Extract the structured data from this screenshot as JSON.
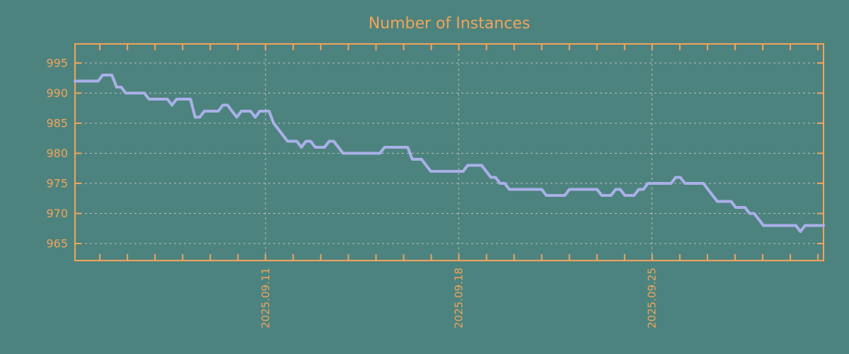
{
  "chart_data": {
    "type": "line",
    "title": "Number of Instances",
    "xlabel": "",
    "ylabel": "",
    "legend": "none",
    "grid": "dashed",
    "y_tick_labels": [
      "965",
      "970",
      "975",
      "980",
      "985",
      "990",
      "995"
    ],
    "y_ticks": [
      965,
      970,
      975,
      980,
      985,
      990,
      995
    ],
    "ylim": [
      962,
      998.5
    ],
    "x_tick_labels": [
      "2025.09.11",
      "2025.09.18",
      "2025.09.25"
    ],
    "x_minor_tick_interval": "1 day",
    "x_range": [
      "2025.09.04",
      "2025.10.01"
    ],
    "series": [
      {
        "name": "instances",
        "x_start": "2025.09.04",
        "interval_hours": 4,
        "values": [
          992,
          992,
          992,
          992,
          992,
          992,
          993,
          993,
          993,
          991,
          991,
          990,
          990,
          990,
          990,
          990,
          989,
          989,
          989,
          989,
          989,
          988,
          989,
          989,
          989,
          989,
          986,
          986,
          987,
          987,
          987,
          987,
          988,
          988,
          987,
          986,
          987,
          987,
          987,
          986,
          987,
          987,
          987,
          985,
          984,
          983,
          982,
          982,
          982,
          981,
          982,
          982,
          981,
          981,
          981,
          982,
          982,
          981,
          980,
          980,
          980,
          980,
          980,
          980,
          980,
          980,
          980,
          981,
          981,
          981,
          981,
          981,
          981,
          979,
          979,
          979,
          978,
          977,
          977,
          977,
          977,
          977,
          977,
          977,
          977,
          978,
          978,
          978,
          978,
          977,
          976,
          976,
          975,
          975,
          974,
          974,
          974,
          974,
          974,
          974,
          974,
          974,
          973,
          973,
          973,
          973,
          973,
          974,
          974,
          974,
          974,
          974,
          974,
          974,
          973,
          973,
          973,
          974,
          974,
          973,
          973,
          973,
          974,
          974,
          975,
          975,
          975,
          975,
          975,
          975,
          976,
          976,
          975,
          975,
          975,
          975,
          975,
          974,
          973,
          972,
          972,
          972,
          972,
          971,
          971,
          971,
          970,
          970,
          969,
          968,
          968,
          968,
          968,
          968,
          968,
          968,
          968,
          967,
          968,
          968,
          968,
          968,
          968
        ]
      }
    ],
    "colors": {
      "background": "#4d837e",
      "axis_and_text": "#f0a45c",
      "line": "#a9b0e8",
      "gridline": "#b7bdbb"
    }
  }
}
